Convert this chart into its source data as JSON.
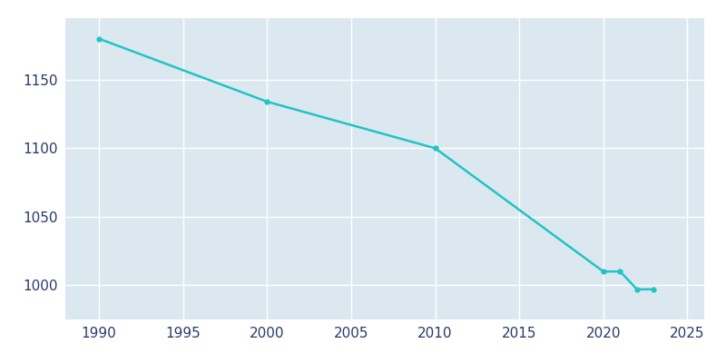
{
  "years": [
    1990,
    2000,
    2010,
    2020,
    2021,
    2022,
    2023
  ],
  "population": [
    1180,
    1134,
    1100,
    1010,
    1010,
    997,
    997
  ],
  "line_color": "#22c4c4",
  "marker": "o",
  "marker_size": 3.5,
  "line_width": 1.8,
  "fig_bg_color": "#ffffff",
  "plot_bg_color": "#dce8f0",
  "grid_color": "#ffffff",
  "tick_color": "#2a3a6a",
  "xlim": [
    1988,
    2026
  ],
  "ylim": [
    975,
    1195
  ],
  "xticks": [
    1990,
    1995,
    2000,
    2005,
    2010,
    2015,
    2020,
    2025
  ],
  "yticks": [
    1000,
    1050,
    1100,
    1150
  ]
}
